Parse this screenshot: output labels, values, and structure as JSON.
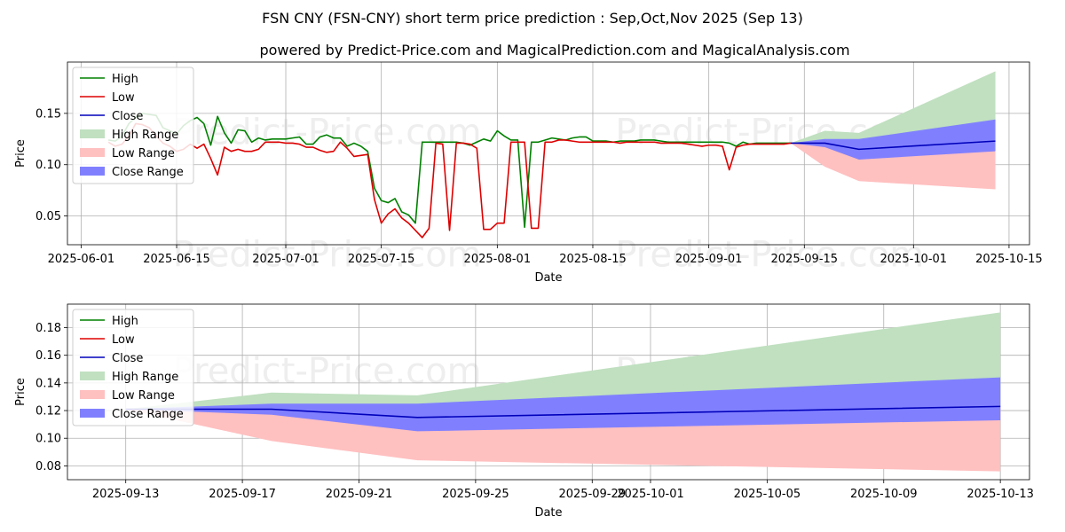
{
  "title": "FSN CNY (FSN-CNY) short term price prediction : Sep,Oct,Nov 2025 (Sep 13)",
  "subtitle": "powered by Predict-Price.com and MagicalPrediction.com and MagicalAnalysis.com",
  "watermark": "Predict-Price.com",
  "colors": {
    "high": "#008000",
    "low": "#dd0000",
    "close": "#0000bb",
    "high_range": "#c0e0c0",
    "low_range": "#ffc0c0",
    "close_range": "#8080ff",
    "grid": "#b0b0b0",
    "watermark": "#eeeeee"
  },
  "chart_data": [
    {
      "type": "line",
      "panel": "top",
      "xlabel": "Date",
      "ylabel": "Price",
      "xlim": [
        "2025-05-30",
        "2025-10-18"
      ],
      "ylim": [
        0.022,
        0.2
      ],
      "x_ticks": [
        "2025-06-01",
        "2025-06-15",
        "2025-07-01",
        "2025-07-15",
        "2025-08-01",
        "2025-08-15",
        "2025-09-01",
        "2025-09-15",
        "2025-10-01",
        "2025-10-15"
      ],
      "y_ticks": [
        0.05,
        0.1,
        0.15
      ],
      "y_tick_labels": [
        "0.05",
        "0.10",
        "0.15"
      ],
      "legend": {
        "position": "upper-left",
        "entries": [
          "High",
          "Low",
          "Close",
          "High Range",
          "Low Range",
          "Close Range"
        ]
      },
      "series": [
        {
          "name": "High",
          "x": [
            "2025-06-05",
            "2025-06-06",
            "2025-06-07",
            "2025-06-08",
            "2025-06-09",
            "2025-06-10",
            "2025-06-11",
            "2025-06-12",
            "2025-06-13",
            "2025-06-14",
            "2025-06-15",
            "2025-06-16",
            "2025-06-17",
            "2025-06-18",
            "2025-06-19",
            "2025-06-20",
            "2025-06-21",
            "2025-06-22",
            "2025-06-23",
            "2025-06-24",
            "2025-06-25",
            "2025-06-26",
            "2025-06-27",
            "2025-06-28",
            "2025-06-29",
            "2025-06-30",
            "2025-07-01",
            "2025-07-02",
            "2025-07-03",
            "2025-07-04",
            "2025-07-05",
            "2025-07-06",
            "2025-07-07",
            "2025-07-08",
            "2025-07-09",
            "2025-07-10",
            "2025-07-11",
            "2025-07-12",
            "2025-07-13",
            "2025-07-14",
            "2025-07-15",
            "2025-07-16",
            "2025-07-17",
            "2025-07-18",
            "2025-07-19",
            "2025-07-20",
            "2025-07-21",
            "2025-07-22",
            "2025-07-23",
            "2025-07-24",
            "2025-07-25",
            "2025-07-26",
            "2025-07-27",
            "2025-07-28",
            "2025-07-29",
            "2025-07-30",
            "2025-07-31",
            "2025-08-01",
            "2025-08-02",
            "2025-08-03",
            "2025-08-04",
            "2025-08-05",
            "2025-08-06",
            "2025-08-07",
            "2025-08-08",
            "2025-08-09",
            "2025-08-10",
            "2025-08-11",
            "2025-08-12",
            "2025-08-13",
            "2025-08-14",
            "2025-08-15",
            "2025-08-16",
            "2025-08-17",
            "2025-08-18",
            "2025-08-19",
            "2025-08-20",
            "2025-08-21",
            "2025-08-22",
            "2025-08-23",
            "2025-08-24",
            "2025-08-25",
            "2025-08-26",
            "2025-08-27",
            "2025-08-28",
            "2025-08-29",
            "2025-08-30",
            "2025-08-31",
            "2025-09-01",
            "2025-09-02",
            "2025-09-03",
            "2025-09-04",
            "2025-09-05",
            "2025-09-06",
            "2025-09-07",
            "2025-09-08",
            "2025-09-09",
            "2025-09-10",
            "2025-09-11",
            "2025-09-12",
            "2025-09-13"
          ],
          "values": [
            0.124,
            0.123,
            0.128,
            0.14,
            0.146,
            0.15,
            0.149,
            0.148,
            0.136,
            0.133,
            0.13,
            0.138,
            0.143,
            0.146,
            0.14,
            0.119,
            0.147,
            0.131,
            0.121,
            0.134,
            0.133,
            0.122,
            0.126,
            0.124,
            0.125,
            0.125,
            0.125,
            0.126,
            0.127,
            0.12,
            0.12,
            0.127,
            0.129,
            0.126,
            0.126,
            0.118,
            0.121,
            0.118,
            0.113,
            0.077,
            0.065,
            0.063,
            0.067,
            0.054,
            0.051,
            0.043,
            0.122,
            0.122,
            0.122,
            0.122,
            0.122,
            0.122,
            0.121,
            0.119,
            0.122,
            0.125,
            0.123,
            0.133,
            0.128,
            0.124,
            0.124,
            0.039,
            0.122,
            0.122,
            0.124,
            0.126,
            0.125,
            0.124,
            0.126,
            0.127,
            0.127,
            0.123,
            0.123,
            0.123,
            0.122,
            0.123,
            0.123,
            0.123,
            0.124,
            0.124,
            0.124,
            0.123,
            0.122,
            0.122,
            0.122,
            0.122,
            0.122,
            0.122,
            0.122,
            0.122,
            0.122,
            0.121,
            0.118,
            0.122,
            0.12,
            0.121,
            0.121,
            0.121,
            0.121,
            0.121,
            0.121
          ]
        },
        {
          "name": "Low",
          "x": [
            "2025-06-05",
            "2025-06-06",
            "2025-06-07",
            "2025-06-08",
            "2025-06-09",
            "2025-06-10",
            "2025-06-11",
            "2025-06-12",
            "2025-06-13",
            "2025-06-14",
            "2025-06-15",
            "2025-06-16",
            "2025-06-17",
            "2025-06-18",
            "2025-06-19",
            "2025-06-20",
            "2025-06-21",
            "2025-06-22",
            "2025-06-23",
            "2025-06-24",
            "2025-06-25",
            "2025-06-26",
            "2025-06-27",
            "2025-06-28",
            "2025-06-29",
            "2025-06-30",
            "2025-07-01",
            "2025-07-02",
            "2025-07-03",
            "2025-07-04",
            "2025-07-05",
            "2025-07-06",
            "2025-07-07",
            "2025-07-08",
            "2025-07-09",
            "2025-07-10",
            "2025-07-11",
            "2025-07-12",
            "2025-07-13",
            "2025-07-14",
            "2025-07-15",
            "2025-07-16",
            "2025-07-17",
            "2025-07-18",
            "2025-07-19",
            "2025-07-20",
            "2025-07-21",
            "2025-07-22",
            "2025-07-23",
            "2025-07-24",
            "2025-07-25",
            "2025-07-26",
            "2025-07-27",
            "2025-07-28",
            "2025-07-29",
            "2025-07-30",
            "2025-07-31",
            "2025-08-01",
            "2025-08-02",
            "2025-08-03",
            "2025-08-04",
            "2025-08-05",
            "2025-08-06",
            "2025-08-07",
            "2025-08-08",
            "2025-08-09",
            "2025-08-10",
            "2025-08-11",
            "2025-08-12",
            "2025-08-13",
            "2025-08-14",
            "2025-08-15",
            "2025-08-16",
            "2025-08-17",
            "2025-08-18",
            "2025-08-19",
            "2025-08-20",
            "2025-08-21",
            "2025-08-22",
            "2025-08-23",
            "2025-08-24",
            "2025-08-25",
            "2025-08-26",
            "2025-08-27",
            "2025-08-28",
            "2025-08-29",
            "2025-08-30",
            "2025-08-31",
            "2025-09-01",
            "2025-09-02",
            "2025-09-03",
            "2025-09-04",
            "2025-09-05",
            "2025-09-06",
            "2025-09-07",
            "2025-09-08",
            "2025-09-09",
            "2025-09-10",
            "2025-09-11",
            "2025-09-12",
            "2025-09-13"
          ],
          "values": [
            0.122,
            0.118,
            0.12,
            0.128,
            0.14,
            0.139,
            0.136,
            0.128,
            0.121,
            0.118,
            0.113,
            0.115,
            0.12,
            0.116,
            0.12,
            0.106,
            0.09,
            0.117,
            0.113,
            0.115,
            0.113,
            0.113,
            0.115,
            0.122,
            0.122,
            0.122,
            0.121,
            0.121,
            0.12,
            0.117,
            0.117,
            0.114,
            0.112,
            0.113,
            0.122,
            0.116,
            0.108,
            0.109,
            0.11,
            0.066,
            0.043,
            0.052,
            0.057,
            0.048,
            0.043,
            0.036,
            0.029,
            0.038,
            0.121,
            0.12,
            0.036,
            0.121,
            0.121,
            0.12,
            0.116,
            0.037,
            0.037,
            0.043,
            0.043,
            0.122,
            0.122,
            0.122,
            0.038,
            0.038,
            0.122,
            0.122,
            0.124,
            0.124,
            0.123,
            0.122,
            0.122,
            0.122,
            0.122,
            0.122,
            0.122,
            0.121,
            0.122,
            0.122,
            0.122,
            0.122,
            0.122,
            0.121,
            0.121,
            0.121,
            0.121,
            0.12,
            0.119,
            0.118,
            0.119,
            0.119,
            0.118,
            0.095,
            0.117,
            0.119,
            0.12,
            0.12,
            0.12,
            0.12,
            0.12,
            0.12,
            0.121
          ]
        },
        {
          "name": "Close",
          "x": [
            "2025-09-13",
            "2025-09-18",
            "2025-09-23",
            "2025-10-13"
          ],
          "values": [
            0.121,
            0.121,
            0.115,
            0.123
          ]
        }
      ],
      "ranges": [
        {
          "name": "High Range",
          "x": [
            "2025-09-13",
            "2025-09-18",
            "2025-09-23",
            "2025-10-13"
          ],
          "lower": [
            0.121,
            0.121,
            0.115,
            0.123
          ],
          "upper": [
            0.121,
            0.133,
            0.131,
            0.191
          ]
        },
        {
          "name": "Low Range",
          "x": [
            "2025-09-13",
            "2025-09-18",
            "2025-09-23",
            "2025-10-13"
          ],
          "lower": [
            0.121,
            0.098,
            0.084,
            0.076
          ],
          "upper": [
            0.121,
            0.121,
            0.115,
            0.123
          ]
        },
        {
          "name": "Close Range",
          "x": [
            "2025-09-13",
            "2025-09-18",
            "2025-09-23",
            "2025-10-13"
          ],
          "lower": [
            0.121,
            0.117,
            0.105,
            0.113
          ],
          "upper": [
            0.121,
            0.125,
            0.125,
            0.144
          ]
        }
      ]
    },
    {
      "type": "line",
      "panel": "bottom",
      "xlabel": "Date",
      "ylabel": "Price",
      "xlim": [
        "2025-09-11",
        "2025-10-14"
      ],
      "ylim": [
        0.07,
        0.197
      ],
      "x_ticks": [
        "2025-09-13",
        "2025-09-17",
        "2025-09-21",
        "2025-09-25",
        "2025-09-29",
        "2025-10-01",
        "2025-10-05",
        "2025-10-09",
        "2025-10-13"
      ],
      "y_ticks": [
        0.08,
        0.1,
        0.12,
        0.14,
        0.16,
        0.18
      ],
      "y_tick_labels": [
        "0.08",
        "0.10",
        "0.12",
        "0.14",
        "0.16",
        "0.18"
      ],
      "legend": {
        "position": "upper-left",
        "entries": [
          "High",
          "Low",
          "Close",
          "High Range",
          "Low Range",
          "Close Range"
        ]
      },
      "series": [
        {
          "name": "Close",
          "x": [
            "2025-09-13",
            "2025-09-18",
            "2025-09-23",
            "2025-10-13"
          ],
          "values": [
            0.121,
            0.121,
            0.115,
            0.123
          ]
        }
      ],
      "ranges": [
        {
          "name": "High Range",
          "x": [
            "2025-09-13",
            "2025-09-18",
            "2025-09-23",
            "2025-10-13"
          ],
          "lower": [
            0.121,
            0.121,
            0.115,
            0.123
          ],
          "upper": [
            0.121,
            0.133,
            0.131,
            0.191
          ]
        },
        {
          "name": "Low Range",
          "x": [
            "2025-09-13",
            "2025-09-18",
            "2025-09-23",
            "2025-10-13"
          ],
          "lower": [
            0.121,
            0.098,
            0.084,
            0.076
          ],
          "upper": [
            0.121,
            0.121,
            0.115,
            0.123
          ]
        },
        {
          "name": "Close Range",
          "x": [
            "2025-09-13",
            "2025-09-18",
            "2025-09-23",
            "2025-10-13"
          ],
          "lower": [
            0.121,
            0.117,
            0.105,
            0.113
          ],
          "upper": [
            0.121,
            0.125,
            0.125,
            0.144
          ]
        }
      ]
    }
  ]
}
